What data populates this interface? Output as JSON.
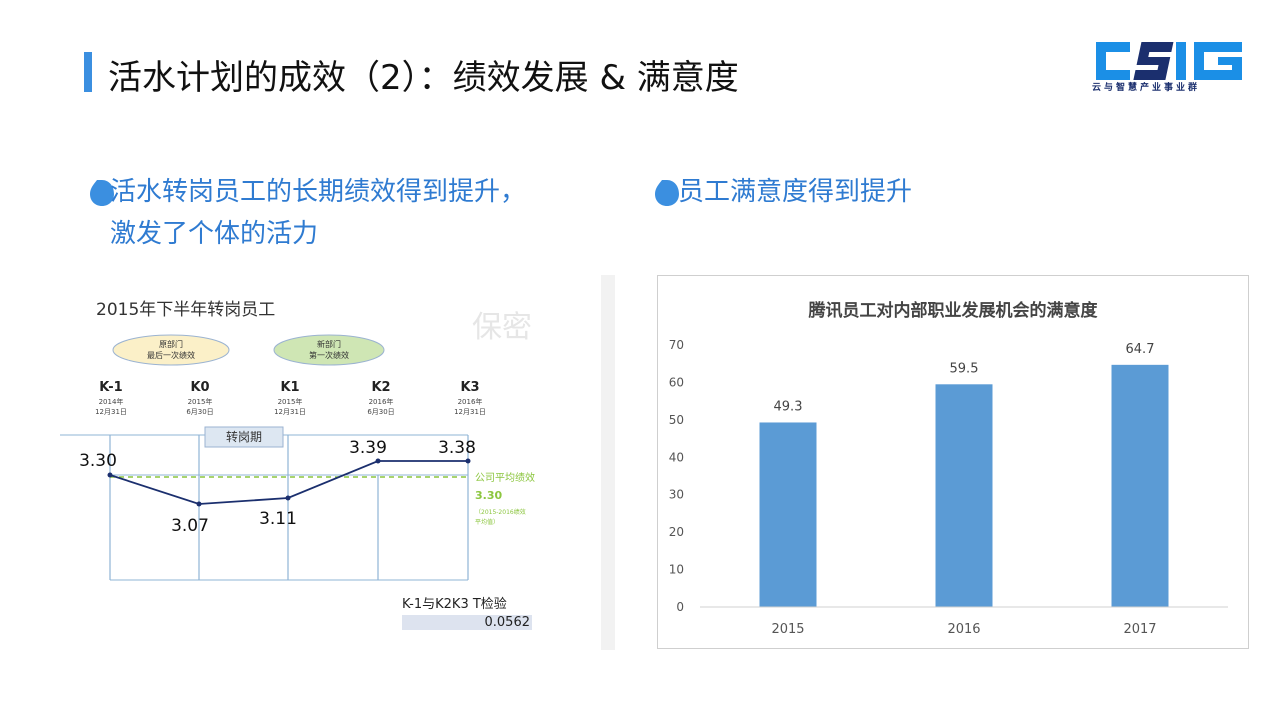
{
  "page": {
    "title": "活水计划的成效（2）：绩效发展 & 满意度",
    "logo_text": "CSIG",
    "logo_subtitle": "云与智慧产业事业群",
    "accent_color": "#3b8fe0",
    "logo_color": "#1b8fe6"
  },
  "left": {
    "heading_line1": "活水转岗员工的长期绩效得到提升，",
    "heading_line2": "激发了个体的活力",
    "figure": {
      "title": "2015年下半年转岗员工",
      "watermark": "保密",
      "bubble1": [
        "原部门",
        "最后一次绩效"
      ],
      "bubble2": [
        "新部门",
        "第一次绩效"
      ],
      "transfer_label": "转岗期",
      "stages": [
        {
          "code": "K-1",
          "date_year": "2014年",
          "date_day": "12月31日"
        },
        {
          "code": "K0",
          "date_year": "2015年",
          "date_day": "6月30日"
        },
        {
          "code": "K1",
          "date_year": "2015年",
          "date_day": "12月31日"
        },
        {
          "code": "K2",
          "date_year": "2016年",
          "date_day": "6月30日"
        },
        {
          "code": "K3",
          "date_year": "2016年",
          "date_day": "12月31日"
        }
      ],
      "scores": [
        "3.30",
        "3.07",
        "3.11",
        "3.39",
        "3.38"
      ],
      "avg_label": "公司平均绩效",
      "avg_value": "3.30",
      "avg_note1": "（2015-2016绩效",
      "avg_note2": "平均值）",
      "ttest_label": "K-1与K2K3  T检验",
      "ttest_value": "0.0562"
    }
  },
  "right": {
    "heading": "员工满意度得到提升"
  },
  "chart_data": {
    "type": "bar",
    "title": "腾讯员工对内部职业发展机会的满意度",
    "categories": [
      "2015",
      "2016",
      "2017"
    ],
    "values": [
      49.3,
      59.5,
      64.7
    ],
    "value_labels": [
      "49.3",
      "59.5",
      "64.7"
    ],
    "ylim": [
      0,
      70
    ],
    "yticks": [
      "0",
      "10",
      "20",
      "30",
      "40",
      "50",
      "60",
      "70"
    ],
    "bar_color": "#5b9bd5",
    "grid": false
  }
}
